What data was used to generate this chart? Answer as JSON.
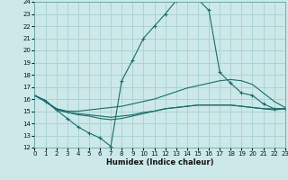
{
  "title": "",
  "xlabel": "Humidex (Indice chaleur)",
  "bg_color": "#cce8e8",
  "grid_color": "#aad4d4",
  "line_color": "#1a6b6b",
  "x_min": 0,
  "x_max": 23,
  "y_min": 12,
  "y_max": 24,
  "series": [
    {
      "x": [
        0,
        1,
        2,
        3,
        4,
        5,
        6,
        7,
        8,
        9,
        10,
        11,
        12,
        13,
        14,
        15,
        16,
        17,
        18,
        19,
        20,
        21,
        22,
        23
      ],
      "y": [
        16.3,
        15.8,
        15.1,
        14.4,
        13.7,
        13.2,
        12.8,
        12.1,
        17.5,
        19.2,
        21.0,
        22.0,
        23.0,
        24.1,
        24.3,
        24.2,
        23.3,
        18.2,
        17.3,
        16.5,
        16.3,
        15.6,
        15.2,
        15.2
      ],
      "marker": "+"
    },
    {
      "x": [
        0,
        1,
        2,
        3,
        4,
        5,
        6,
        7,
        8,
        9,
        10,
        11,
        12,
        13,
        14,
        15,
        16,
        17,
        18,
        19,
        20,
        21,
        22,
        23
      ],
      "y": [
        16.3,
        15.8,
        15.2,
        15.0,
        15.0,
        15.1,
        15.2,
        15.3,
        15.4,
        15.6,
        15.8,
        16.0,
        16.3,
        16.6,
        16.9,
        17.1,
        17.3,
        17.5,
        17.6,
        17.5,
        17.2,
        16.5,
        15.8,
        15.3
      ],
      "marker": null
    },
    {
      "x": [
        0,
        1,
        2,
        3,
        4,
        5,
        6,
        7,
        8,
        9,
        10,
        11,
        12,
        13,
        14,
        15,
        16,
        17,
        18,
        19,
        20,
        21,
        22,
        23
      ],
      "y": [
        16.3,
        15.8,
        15.2,
        14.9,
        14.7,
        14.6,
        14.4,
        14.3,
        14.4,
        14.6,
        14.8,
        15.0,
        15.2,
        15.3,
        15.4,
        15.5,
        15.5,
        15.5,
        15.5,
        15.4,
        15.3,
        15.2,
        15.1,
        15.2
      ],
      "marker": null
    },
    {
      "x": [
        0,
        1,
        2,
        3,
        4,
        5,
        6,
        7,
        8,
        9,
        10,
        11,
        12,
        13,
        14,
        15,
        16,
        17,
        18,
        19,
        20,
        21,
        22,
        23
      ],
      "y": [
        16.3,
        15.9,
        15.1,
        14.9,
        14.8,
        14.7,
        14.6,
        14.5,
        14.6,
        14.7,
        14.9,
        15.0,
        15.2,
        15.3,
        15.4,
        15.5,
        15.5,
        15.5,
        15.5,
        15.4,
        15.3,
        15.2,
        15.2,
        15.2
      ],
      "marker": null
    }
  ]
}
